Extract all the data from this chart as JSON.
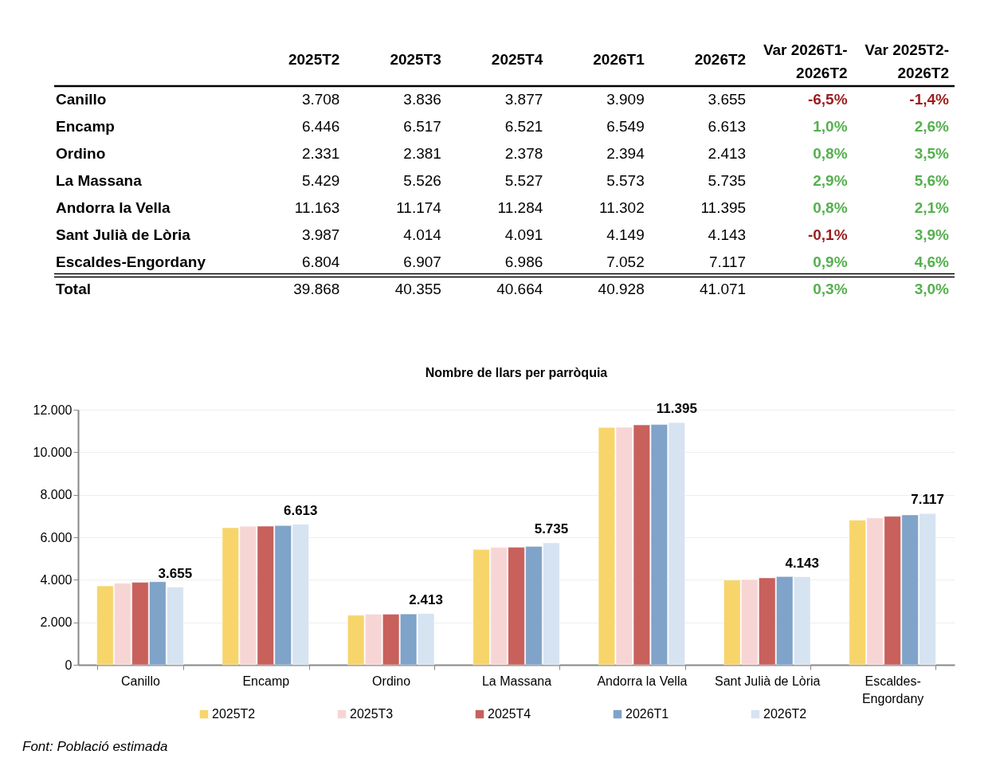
{
  "chart_data": [
    {
      "type": "other",
      "categories": [
        "Canillo",
        "Encamp",
        "Ordino",
        "La Massana",
        "Andorra la Vella",
        "Sant Julià de Lòria",
        "Escaldes-Engordany",
        "Total"
      ],
      "series": [
        {
          "name": "2025T2",
          "color": "#000000",
          "values": [
            3708,
            6446,
            2331,
            5429,
            11163,
            3987,
            6804,
            39868
          ],
          "value_labels": [
            "3.708",
            "6.446",
            "2.331",
            "5.429",
            "11.163",
            "3.987",
            "6.804",
            "39.868"
          ]
        },
        {
          "name": "2025T3",
          "color": "#000000",
          "values": [
            3836,
            6517,
            2381,
            5526,
            11174,
            4014,
            6907,
            40355
          ],
          "value_labels": [
            "3.836",
            "6.517",
            "2.381",
            "5.526",
            "11.174",
            "4.014",
            "6.907",
            "40.355"
          ]
        },
        {
          "name": "2025T4",
          "color": "#000000",
          "values": [
            3877,
            6521,
            2378,
            5527,
            11284,
            4091,
            6986,
            40664
          ],
          "value_labels": [
            "3.877",
            "6.521",
            "2.378",
            "5.527",
            "11.284",
            "4.091",
            "6.986",
            "40.664"
          ]
        },
        {
          "name": "2026T1",
          "color": "#000000",
          "values": [
            3909,
            6549,
            2394,
            5573,
            11302,
            4149,
            7052,
            40928
          ],
          "value_labels": [
            "3.909",
            "6.549",
            "2.394",
            "5.573",
            "11.302",
            "4.149",
            "7.052",
            "40.928"
          ]
        },
        {
          "name": "2026T2",
          "color": "#000000",
          "values": [
            3655,
            6613,
            2413,
            5735,
            11395,
            4143,
            7117,
            41071
          ],
          "value_labels": [
            "3.655",
            "6.613",
            "2.413",
            "5.735",
            "11.395",
            "4.143",
            "7.117",
            "41.071"
          ]
        },
        {
          "name": "Var 2026T1-2026T2",
          "colors": [
            "#9b1c1c",
            "#55b04f",
            "#55b04f",
            "#55b04f",
            "#55b04f",
            "#9b1c1c",
            "#55b04f",
            "#55b04f"
          ],
          "values": [
            -6.5,
            1.0,
            0.8,
            2.9,
            0.8,
            -0.1,
            0.9,
            0.3
          ],
          "value_labels": [
            "-6,5%",
            "1,0%",
            "0,8%",
            "2,9%",
            "0,8%",
            "-0,1%",
            "0,9%",
            "0,3%"
          ]
        },
        {
          "name": "Var 2025T2-2026T2",
          "colors": [
            "#9b1c1c",
            "#55b04f",
            "#55b04f",
            "#55b04f",
            "#55b04f",
            "#55b04f",
            "#55b04f",
            "#55b04f"
          ],
          "values": [
            -1.4,
            2.6,
            3.5,
            5.6,
            2.1,
            3.9,
            4.6,
            3.0
          ],
          "value_labels": [
            "-1,4%",
            "2,6%",
            "3,5%",
            "5,6%",
            "2,1%",
            "3,9%",
            "4,6%",
            "3,0%"
          ]
        }
      ]
    },
    {
      "type": "bar",
      "title": "Nombre de llars per parròquia",
      "categories": [
        "Canillo",
        "Encamp",
        "Ordino",
        "La Massana",
        "Andorra la Vella",
        "Sant Julià de Lòria",
        "Escaldes-Engordany"
      ],
      "series": [
        {
          "name": "2025T2",
          "color": "#f7d56b",
          "values": [
            3708,
            6446,
            2331,
            5429,
            11163,
            3987,
            6804
          ]
        },
        {
          "name": "2025T3",
          "color": "#f8d5d5",
          "values": [
            3836,
            6517,
            2381,
            5526,
            11174,
            4014,
            6907
          ]
        },
        {
          "name": "2025T4",
          "color": "#c8605c",
          "values": [
            3877,
            6521,
            2378,
            5527,
            11284,
            4091,
            6986
          ]
        },
        {
          "name": "2026T1",
          "color": "#7fa3c9",
          "values": [
            3909,
            6549,
            2394,
            5573,
            11302,
            4149,
            7052
          ]
        },
        {
          "name": "2026T2",
          "color": "#d6e3f1",
          "values": [
            3655,
            6613,
            2413,
            5735,
            11395,
            4143,
            7117
          ],
          "value_labels": [
            "3.655",
            "6.613",
            "2.413",
            "5.735",
            "11.395",
            "4.143",
            "7.117"
          ]
        }
      ],
      "ylim": [
        0,
        12000
      ],
      "yticks": [
        0,
        {
          "value": 2000,
          "label": "2.000"
        },
        {
          "value": 4000,
          "label": "4.000"
        },
        {
          "value": 6000,
          "label": "6.000"
        },
        {
          "value": 8000,
          "label": "8.000"
        },
        {
          "value": 10000,
          "label": "10.000"
        },
        {
          "value": 12000,
          "label": "12.000"
        }
      ],
      "grid": "y",
      "legend": "bottom",
      "annotations": [
        "Font: Població estimada"
      ]
    }
  ]
}
